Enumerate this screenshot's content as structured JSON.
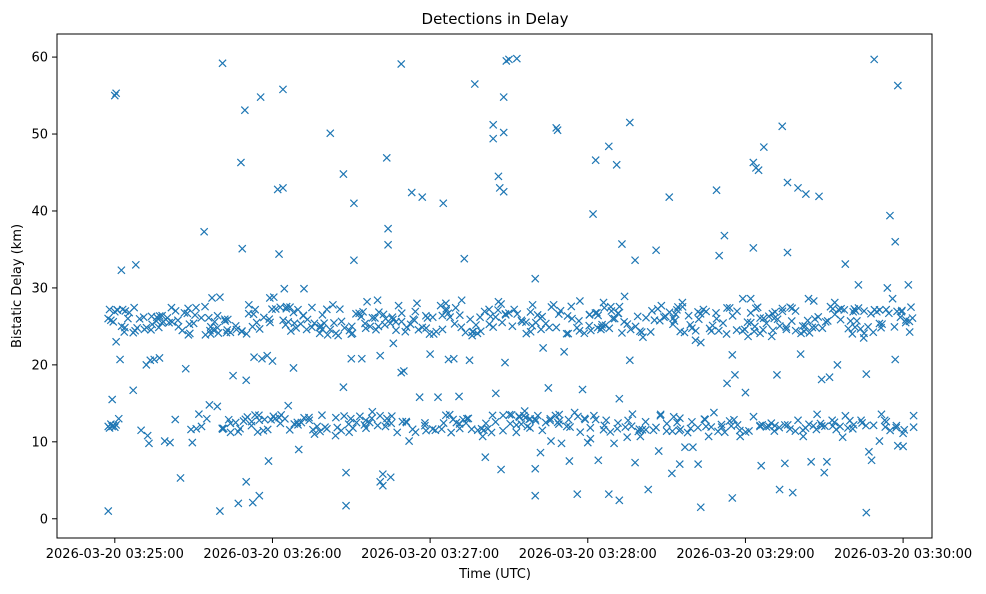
{
  "chart_data": {
    "type": "scatter",
    "title": "Detections in Delay",
    "xlabel": "Time (UTC)",
    "ylabel": "Bistatic Delay (km)",
    "marker": "x",
    "color": "#1f77b4",
    "xlim_seconds": [
      -22,
      311
    ],
    "ylim": [
      -2.5,
      63
    ],
    "x_ticks": [
      {
        "seconds": 0,
        "label": "2026-03-20 03:25:00"
      },
      {
        "seconds": 60,
        "label": "2026-03-20 03:26:00"
      },
      {
        "seconds": 120,
        "label": "2026-03-20 03:27:00"
      },
      {
        "seconds": 180,
        "label": "2026-03-20 03:28:00"
      },
      {
        "seconds": 240,
        "label": "2026-03-20 03:29:00"
      },
      {
        "seconds": 300,
        "label": "2026-03-20 03:30:00"
      }
    ],
    "y_ticks": [
      {
        "value": 0,
        "label": "0"
      },
      {
        "value": 10,
        "label": "10"
      },
      {
        "value": 20,
        "label": "20"
      },
      {
        "value": 30,
        "label": "30"
      },
      {
        "value": 40,
        "label": "40"
      },
      {
        "value": 50,
        "label": "50"
      },
      {
        "value": 60,
        "label": "60"
      }
    ],
    "x_reference": "2026-03-20 03:25:00",
    "x_unit": "seconds after 03:25:00 UTC",
    "points": [
      [
        -2.5,
        1.0
      ],
      [
        -2.5,
        12
      ],
      [
        -2,
        11.8
      ],
      [
        -1.5,
        12.3
      ],
      [
        -1,
        12
      ],
      [
        -0.5,
        12.1
      ],
      [
        0,
        11.9
      ],
      [
        0.5,
        12.2
      ],
      [
        -1,
        15.5
      ],
      [
        -2,
        27.2
      ],
      [
        -1.5,
        25.8
      ],
      [
        0,
        26.9
      ],
      [
        1,
        27.1
      ],
      [
        0.5,
        23.0
      ],
      [
        0,
        55.0
      ],
      [
        0.5,
        55.3
      ],
      [
        1.5,
        13.0
      ],
      [
        2,
        20.7
      ],
      [
        2.5,
        32.3
      ],
      [
        3,
        27.2
      ],
      [
        4,
        27.0
      ],
      [
        5.5,
        26.8
      ],
      [
        7,
        16.7
      ],
      [
        8,
        33.0
      ],
      [
        8.5,
        24.8
      ],
      [
        10,
        11.5
      ],
      [
        11,
        26.2
      ],
      [
        12,
        20.0
      ],
      [
        12.5,
        10.8
      ],
      [
        13,
        9.8
      ],
      [
        13.5,
        20.6
      ],
      [
        14,
        26.3
      ],
      [
        15,
        20.7
      ],
      [
        16,
        26.2
      ],
      [
        17,
        20.9
      ],
      [
        18,
        26.4
      ],
      [
        19,
        10.1
      ],
      [
        20,
        26.1
      ],
      [
        21,
        9.9
      ],
      [
        23,
        12.9
      ],
      [
        24,
        25.8
      ],
      [
        25,
        5.3
      ],
      [
        27,
        19.5
      ],
      [
        28,
        23.9
      ],
      [
        29,
        11.6
      ],
      [
        29.5,
        9.9
      ],
      [
        30,
        25.4
      ],
      [
        31,
        11.7
      ],
      [
        32,
        13.6
      ],
      [
        33,
        12.0
      ],
      [
        34,
        37.3
      ],
      [
        34.5,
        23.9
      ],
      [
        35,
        13.0
      ],
      [
        36,
        14.8
      ],
      [
        36.5,
        24.0
      ],
      [
        37,
        28.7
      ],
      [
        38,
        25.6
      ],
      [
        39,
        14.6
      ],
      [
        40,
        28.8
      ],
      [
        41,
        59.2
      ],
      [
        40,
        1.0
      ],
      [
        42,
        25.7
      ],
      [
        43,
        25.9
      ],
      [
        44,
        12.4
      ],
      [
        45,
        18.6
      ],
      [
        46,
        12.5
      ],
      [
        47,
        2.0
      ],
      [
        48,
        46.3
      ],
      [
        48.5,
        35.1
      ],
      [
        49,
        12.7
      ],
      [
        49.5,
        53.1
      ],
      [
        50,
        18.0
      ],
      [
        50,
        4.8
      ],
      [
        51,
        27.8
      ],
      [
        52,
        12.1
      ],
      [
        52.5,
        2.1
      ],
      [
        53,
        21.0
      ],
      [
        54,
        25.5
      ],
      [
        55,
        12.8
      ],
      [
        55,
        3.0
      ],
      [
        55.5,
        54.8
      ],
      [
        56,
        20.8
      ],
      [
        57,
        12.9
      ],
      [
        58,
        21.2
      ],
      [
        58.5,
        7.5
      ],
      [
        59,
        28.7
      ],
      [
        60,
        20.5
      ],
      [
        60.5,
        28.8
      ],
      [
        61,
        13.0
      ],
      [
        62,
        42.8
      ],
      [
        62.5,
        34.4
      ],
      [
        63,
        12.4
      ],
      [
        64,
        55.8
      ],
      [
        64,
        43.0
      ],
      [
        64.5,
        29.9
      ],
      [
        65,
        25.2
      ],
      [
        66,
        14.7
      ],
      [
        67,
        24.4
      ],
      [
        68,
        19.6
      ],
      [
        69,
        24.8
      ],
      [
        70,
        9.0
      ],
      [
        71,
        12.5
      ],
      [
        72,
        29.9
      ],
      [
        73,
        24.6
      ],
      [
        74,
        12.8
      ],
      [
        75,
        24.9
      ],
      [
        76,
        11.0
      ],
      [
        77,
        12.0
      ],
      [
        78,
        24.1
      ],
      [
        79,
        26.5
      ],
      [
        80,
        11.9
      ],
      [
        81,
        23.9
      ],
      [
        82,
        50.1
      ],
      [
        83,
        27.8
      ],
      [
        84,
        10.8
      ],
      [
        85,
        23.8
      ],
      [
        87,
        17.1
      ],
      [
        87,
        44.8
      ],
      [
        88,
        6.0
      ],
      [
        88,
        1.7
      ],
      [
        89,
        12.3
      ],
      [
        90,
        20.8
      ],
      [
        90,
        24.0
      ],
      [
        91,
        33.6
      ],
      [
        91,
        41.0
      ],
      [
        92,
        12.5
      ],
      [
        93,
        26.7
      ],
      [
        94,
        20.8
      ],
      [
        95,
        12.2
      ],
      [
        96,
        28.2
      ],
      [
        97,
        12.5
      ],
      [
        98,
        13.9
      ],
      [
        99,
        26.1
      ],
      [
        100,
        28.4
      ],
      [
        101,
        4.8
      ],
      [
        101,
        21.2
      ],
      [
        102,
        5.8
      ],
      [
        102,
        4.3
      ],
      [
        103,
        12.0
      ],
      [
        103.5,
        46.9
      ],
      [
        104,
        35.6
      ],
      [
        104,
        37.7
      ],
      [
        105,
        5.4
      ],
      [
        106,
        22.8
      ],
      [
        107,
        25.6
      ],
      [
        108,
        27.7
      ],
      [
        109,
        59.1
      ],
      [
        109,
        19.0
      ],
      [
        110,
        19.2
      ],
      [
        111,
        12.5
      ],
      [
        112,
        10.1
      ],
      [
        113,
        42.4
      ],
      [
        114,
        25.8
      ],
      [
        115,
        28.0
      ],
      [
        116,
        15.8
      ],
      [
        117,
        41.8
      ],
      [
        118,
        12.1
      ],
      [
        119,
        26.1
      ],
      [
        120,
        21.4
      ],
      [
        121,
        26.2
      ],
      [
        122,
        11.5
      ],
      [
        123,
        15.8
      ],
      [
        124,
        27.7
      ],
      [
        125,
        41.0
      ],
      [
        126,
        28.0
      ],
      [
        127,
        20.7
      ],
      [
        128,
        11.2
      ],
      [
        129,
        20.8
      ],
      [
        130,
        12.5
      ],
      [
        131,
        15.9
      ],
      [
        132,
        28.4
      ],
      [
        133,
        33.8
      ],
      [
        134,
        13.0
      ],
      [
        135,
        20.6
      ],
      [
        136,
        23.8
      ],
      [
        137,
        56.5
      ],
      [
        138,
        24.1
      ],
      [
        139,
        26.2
      ],
      [
        140,
        10.7
      ],
      [
        141,
        8.0
      ],
      [
        142,
        11.7
      ],
      [
        143,
        26.3
      ],
      [
        144,
        51.2
      ],
      [
        144,
        49.4
      ],
      [
        145,
        16.3
      ],
      [
        146,
        28.2
      ],
      [
        146,
        44.5
      ],
      [
        146.5,
        43.0
      ],
      [
        147,
        27.9
      ],
      [
        147,
        6.4
      ],
      [
        148,
        54.8
      ],
      [
        148,
        50.2
      ],
      [
        148,
        42.5
      ],
      [
        148.5,
        20.3
      ],
      [
        149,
        59.5
      ],
      [
        150,
        59.7
      ],
      [
        151,
        13.5
      ],
      [
        152,
        27.2
      ],
      [
        153,
        59.8
      ],
      [
        154,
        13.2
      ],
      [
        155,
        25.6
      ],
      [
        156,
        14.0
      ],
      [
        157,
        12.0
      ],
      [
        158,
        11.8
      ],
      [
        159,
        27.8
      ],
      [
        160,
        31.2
      ],
      [
        160,
        3.0
      ],
      [
        160,
        6.5
      ],
      [
        161,
        13.4
      ],
      [
        162,
        8.6
      ],
      [
        163,
        22.2
      ],
      [
        164,
        12.5
      ],
      [
        165,
        17.0
      ],
      [
        166,
        10.1
      ],
      [
        167,
        27.8
      ],
      [
        168,
        50.8
      ],
      [
        168.5,
        50.5
      ],
      [
        169,
        12.3
      ],
      [
        170,
        9.8
      ],
      [
        171,
        21.7
      ],
      [
        172,
        12.0
      ],
      [
        173,
        7.5
      ],
      [
        174,
        26.0
      ],
      [
        175,
        13.8
      ],
      [
        176,
        3.2
      ],
      [
        177,
        28.3
      ],
      [
        178,
        16.8
      ],
      [
        179,
        12.9
      ],
      [
        180,
        9.9
      ],
      [
        181,
        10.4
      ],
      [
        182,
        39.6
      ],
      [
        183,
        46.6
      ],
      [
        183,
        12.9
      ],
      [
        184,
        7.6
      ],
      [
        185,
        24.6
      ],
      [
        186,
        28.1
      ],
      [
        187,
        12.8
      ],
      [
        188,
        3.2
      ],
      [
        188,
        48.4
      ],
      [
        189,
        27.0
      ],
      [
        190,
        9.8
      ],
      [
        191,
        46.0
      ],
      [
        192,
        15.6
      ],
      [
        192,
        2.4
      ],
      [
        193,
        35.7
      ],
      [
        194,
        28.9
      ],
      [
        195,
        10.6
      ],
      [
        196,
        51.5
      ],
      [
        196,
        20.6
      ],
      [
        197,
        13.6
      ],
      [
        198,
        7.3
      ],
      [
        198,
        33.6
      ],
      [
        199,
        26.3
      ],
      [
        200,
        10.7
      ],
      [
        201,
        23.6
      ],
      [
        202,
        12.6
      ],
      [
        203,
        3.8
      ],
      [
        205,
        11.5
      ],
      [
        206,
        34.9
      ],
      [
        207,
        8.8
      ],
      [
        208,
        27.7
      ],
      [
        209,
        26.2
      ],
      [
        210,
        11.4
      ],
      [
        211,
        41.8
      ],
      [
        212,
        5.9
      ],
      [
        213,
        25.7
      ],
      [
        214,
        12.5
      ],
      [
        215,
        7.1
      ],
      [
        216,
        28.1
      ],
      [
        217,
        9.3
      ],
      [
        218,
        11.2
      ],
      [
        219,
        25.2
      ],
      [
        220,
        9.3
      ],
      [
        221,
        23.2
      ],
      [
        222,
        7.1
      ],
      [
        223,
        1.5
      ],
      [
        223,
        22.9
      ],
      [
        224,
        27.2
      ],
      [
        225,
        12.0
      ],
      [
        226,
        10.7
      ],
      [
        227,
        24.4
      ],
      [
        228,
        13.8
      ],
      [
        229,
        42.7
      ],
      [
        230,
        34.2
      ],
      [
        231,
        11.9
      ],
      [
        232,
        36.8
      ],
      [
        233,
        17.6
      ],
      [
        234,
        27.4
      ],
      [
        235,
        2.7
      ],
      [
        235,
        21.3
      ],
      [
        236,
        18.7
      ],
      [
        237,
        12.2
      ],
      [
        238,
        10.7
      ],
      [
        239,
        28.6
      ],
      [
        240,
        16.4
      ],
      [
        241,
        23.7
      ],
      [
        242,
        28.6
      ],
      [
        243,
        35.2
      ],
      [
        243,
        46.3
      ],
      [
        244,
        45.6
      ],
      [
        245,
        45.3
      ],
      [
        246,
        6.9
      ],
      [
        247,
        48.3
      ],
      [
        248,
        25.4
      ],
      [
        249,
        12.0
      ],
      [
        250,
        23.7
      ],
      [
        251,
        11.4
      ],
      [
        252,
        18.7
      ],
      [
        253,
        3.8
      ],
      [
        254,
        51.0
      ],
      [
        255,
        7.2
      ],
      [
        256,
        43.7
      ],
      [
        256,
        34.6
      ],
      [
        257,
        27.5
      ],
      [
        258,
        3.4
      ],
      [
        259,
        11.4
      ],
      [
        260,
        43.0
      ],
      [
        261,
        21.4
      ],
      [
        262,
        10.7
      ],
      [
        263,
        42.2
      ],
      [
        264,
        28.6
      ],
      [
        265,
        7.4
      ],
      [
        266,
        28.3
      ],
      [
        267,
        11.6
      ],
      [
        268,
        41.9
      ],
      [
        269,
        18.1
      ],
      [
        270,
        6.0
      ],
      [
        271,
        7.4
      ],
      [
        272,
        18.4
      ],
      [
        273,
        12.8
      ],
      [
        274,
        28.1
      ],
      [
        275,
        20.0
      ],
      [
        276,
        12.0
      ],
      [
        277,
        10.6
      ],
      [
        278,
        33.1
      ],
      [
        279,
        11.8
      ],
      [
        280,
        25.7
      ],
      [
        281,
        26.9
      ],
      [
        282,
        27.0
      ],
      [
        283,
        30.4
      ],
      [
        284,
        12.8
      ],
      [
        285,
        23.5
      ],
      [
        286,
        0.8
      ],
      [
        286,
        18.8
      ],
      [
        287,
        8.7
      ],
      [
        288,
        7.6
      ],
      [
        289,
        59.7
      ],
      [
        290,
        26.9
      ],
      [
        291,
        10.1
      ],
      [
        292,
        25.3
      ],
      [
        293,
        12.8
      ],
      [
        294,
        30.0
      ],
      [
        295,
        39.4
      ],
      [
        296,
        28.6
      ],
      [
        297,
        36.0
      ],
      [
        297,
        20.7
      ],
      [
        298,
        56.3
      ],
      [
        298,
        9.5
      ],
      [
        299,
        26.2
      ],
      [
        300,
        9.4
      ],
      [
        300,
        11.1
      ],
      [
        301,
        25.5
      ],
      [
        302,
        30.4
      ],
      [
        303,
        27.5
      ],
      [
        304,
        11.9
      ],
      [
        304,
        13.4
      ]
    ],
    "bands": [
      {
        "from": -2,
        "to": 304,
        "step": 1.4,
        "center": 25.8,
        "amplitude": 1.8
      },
      {
        "from": 40,
        "to": 300,
        "step": 2.2,
        "center": 12.4,
        "amplitude": 1.2
      }
    ]
  }
}
